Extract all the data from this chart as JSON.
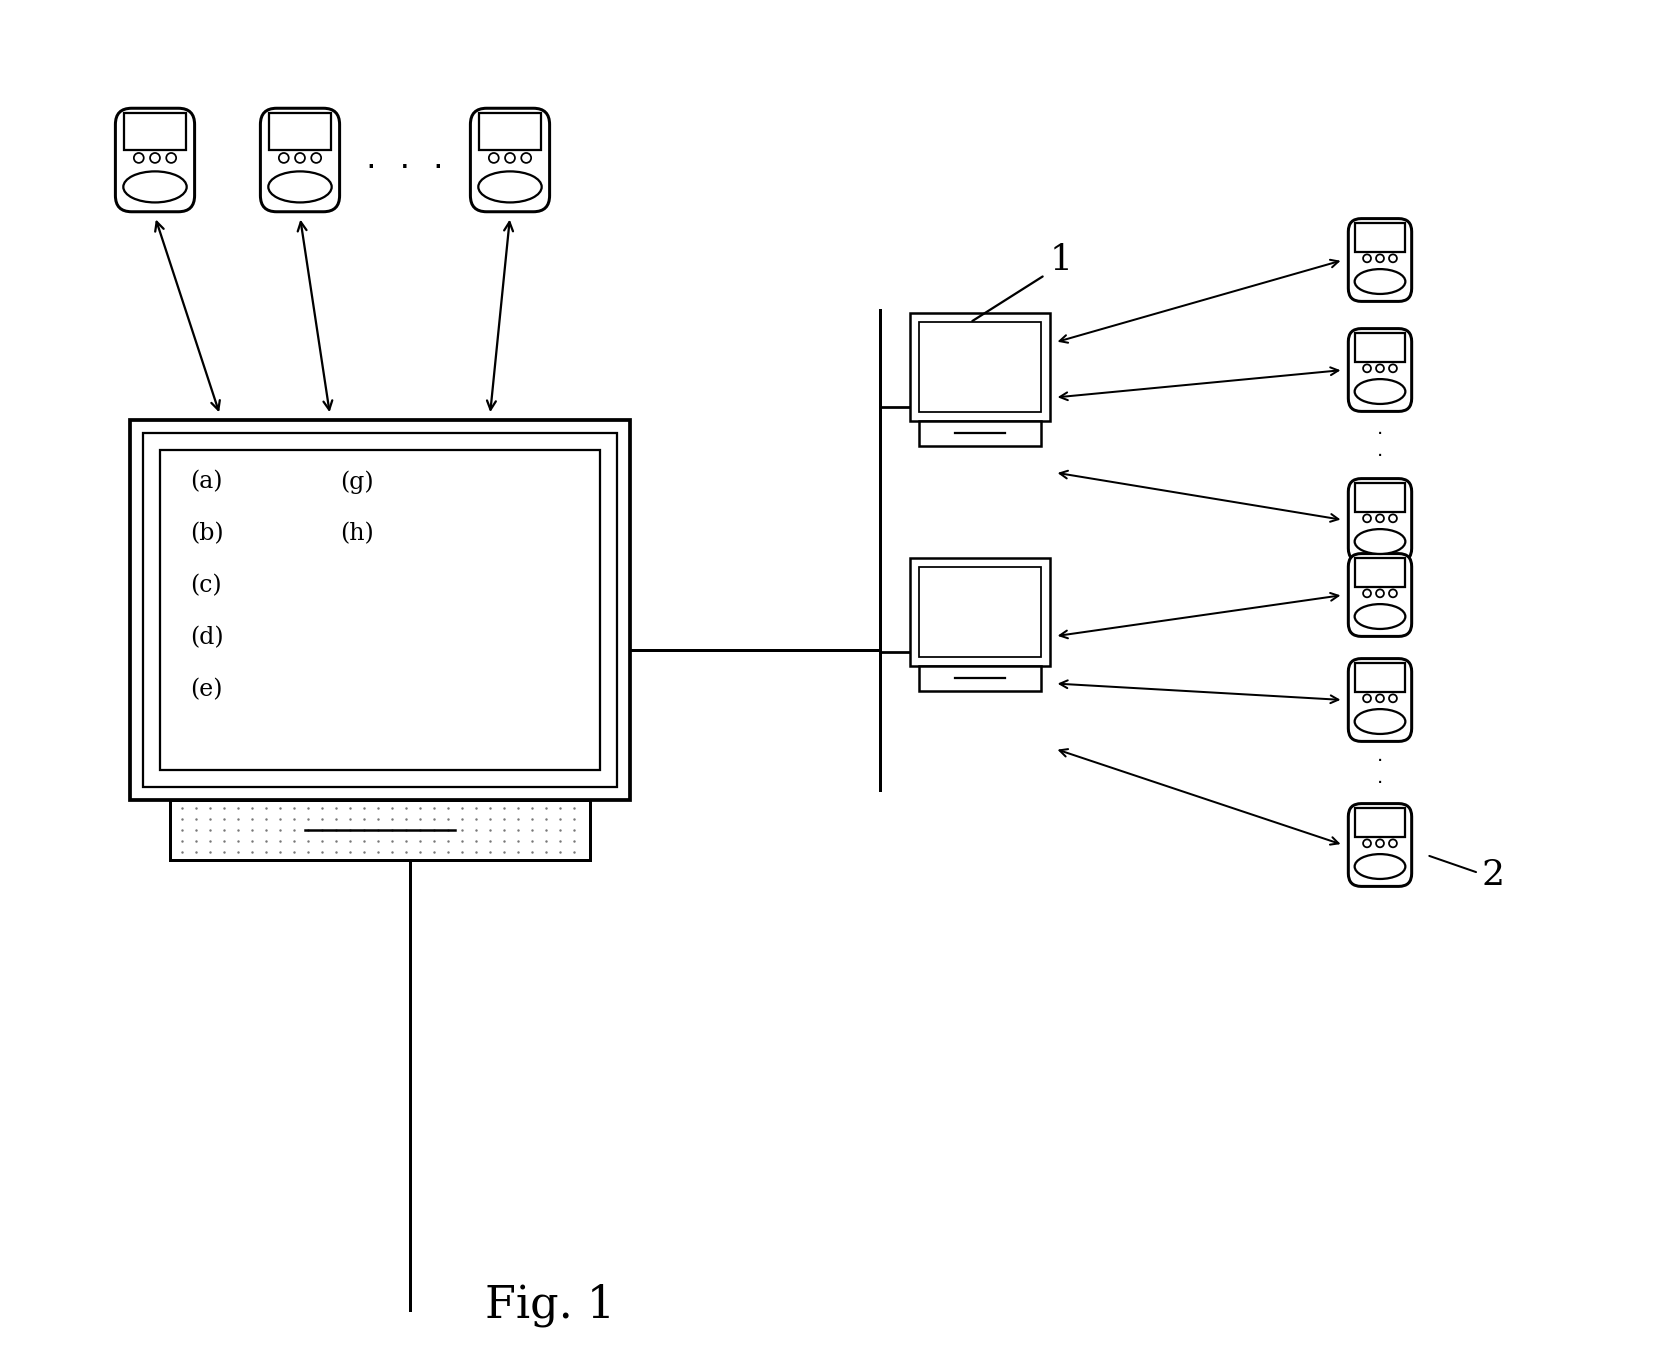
{
  "bg_color": "#ffffff",
  "title": "Fig. 1",
  "title_fontsize": 32,
  "label_1": "1",
  "label_2": "2",
  "labels_abc": [
    "(a)",
    "(b)",
    "(c)",
    "(d)",
    "(e)"
  ],
  "labels_gh": [
    "(g)",
    "(h)"
  ]
}
